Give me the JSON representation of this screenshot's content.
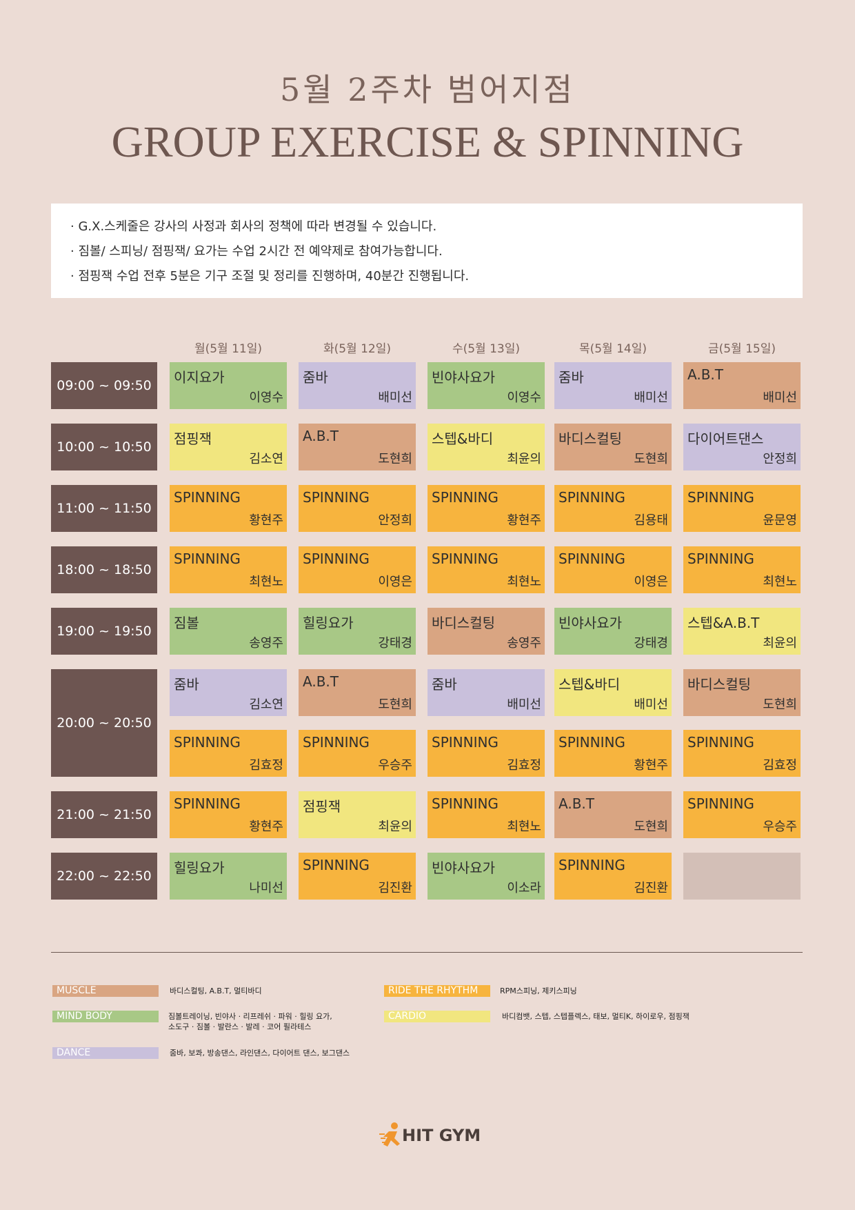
{
  "header": {
    "subtitle": "5월 2주차 범어지점",
    "title": "GROUP EXERCISE & SPINNING"
  },
  "notices": [
    "· G.X.스케줄은 강사의 사정과 회사의 정책에 따라 변경될 수 있습니다.",
    "· 짐볼/ 스피닝/ 점핑잭/ 요가는 수업 2시간 전 예약제로 참여가능합니다.",
    "· 점핑잭 수업 전후 5분은 기구 조절 및 정리를 진행하며, 40분간 진행됩니다."
  ],
  "days": [
    "월(5월 11일)",
    "화(5월 12일)",
    "수(5월 13일)",
    "목(5월 14일)",
    "금(5월 15일)"
  ],
  "colors": {
    "muscle": "#d9a582",
    "mindbody": "#a8c886",
    "dance": "#c9c0dc",
    "ride": "#f7b43e",
    "cardio": "#f1e67f",
    "empty": "#d3bfb7",
    "time": "#6d5551"
  },
  "schedule": [
    {
      "time": "09:00 ~ 09:50",
      "slots": [
        [
          {
            "name": "이지요가",
            "instructor": "이영수",
            "cat": "mindbody"
          },
          {
            "name": "줌바",
            "instructor": "배미선",
            "cat": "dance"
          },
          {
            "name": "빈야사요가",
            "instructor": "이영수",
            "cat": "mindbody"
          },
          {
            "name": "줌바",
            "instructor": "배미선",
            "cat": "dance"
          },
          {
            "name": "A.B.T",
            "instructor": "배미선",
            "cat": "muscle"
          }
        ]
      ]
    },
    {
      "time": "10:00 ~ 10:50",
      "slots": [
        [
          {
            "name": "점핑잭",
            "instructor": "김소연",
            "cat": "cardio"
          },
          {
            "name": "A.B.T",
            "instructor": "도현희",
            "cat": "muscle"
          },
          {
            "name": "스텝&바디",
            "instructor": "최윤의",
            "cat": "cardio"
          },
          {
            "name": "바디스컬팅",
            "instructor": "도현희",
            "cat": "muscle"
          },
          {
            "name": "다이어트댄스",
            "instructor": "안정희",
            "cat": "dance"
          }
        ]
      ]
    },
    {
      "time": "11:00 ~ 11:50",
      "slots": [
        [
          {
            "name": "SPINNING",
            "instructor": "황현주",
            "cat": "ride"
          },
          {
            "name": "SPINNING",
            "instructor": "안정희",
            "cat": "ride"
          },
          {
            "name": "SPINNING",
            "instructor": "황현주",
            "cat": "ride"
          },
          {
            "name": "SPINNING",
            "instructor": "김용태",
            "cat": "ride"
          },
          {
            "name": "SPINNING",
            "instructor": "윤문영",
            "cat": "ride"
          }
        ]
      ]
    },
    {
      "time": "18:00 ~ 18:50",
      "slots": [
        [
          {
            "name": "SPINNING",
            "instructor": "최현노",
            "cat": "ride"
          },
          {
            "name": "SPINNING",
            "instructor": "이영은",
            "cat": "ride"
          },
          {
            "name": "SPINNING",
            "instructor": "최현노",
            "cat": "ride"
          },
          {
            "name": "SPINNING",
            "instructor": "이영은",
            "cat": "ride"
          },
          {
            "name": "SPINNING",
            "instructor": "최현노",
            "cat": "ride"
          }
        ]
      ]
    },
    {
      "time": "19:00 ~ 19:50",
      "slots": [
        [
          {
            "name": "짐볼",
            "instructor": "송영주",
            "cat": "mindbody"
          },
          {
            "name": "힐링요가",
            "instructor": "강태경",
            "cat": "mindbody"
          },
          {
            "name": "바디스컬팅",
            "instructor": "송영주",
            "cat": "muscle"
          },
          {
            "name": "빈야사요가",
            "instructor": "강태경",
            "cat": "mindbody"
          },
          {
            "name": "스텝&A.B.T",
            "instructor": "최윤의",
            "cat": "cardio"
          }
        ]
      ]
    },
    {
      "time": "20:00 ~ 20:50",
      "slots": [
        [
          {
            "name": "줌바",
            "instructor": "김소연",
            "cat": "dance"
          },
          {
            "name": "A.B.T",
            "instructor": "도현희",
            "cat": "muscle"
          },
          {
            "name": "줌바",
            "instructor": "배미선",
            "cat": "dance"
          },
          {
            "name": "스텝&바디",
            "instructor": "배미선",
            "cat": "cardio"
          },
          {
            "name": "바디스컬팅",
            "instructor": "도현희",
            "cat": "muscle"
          }
        ],
        [
          {
            "name": "SPINNING",
            "instructor": "김효정",
            "cat": "ride"
          },
          {
            "name": "SPINNING",
            "instructor": "우승주",
            "cat": "ride"
          },
          {
            "name": "SPINNING",
            "instructor": "김효정",
            "cat": "ride"
          },
          {
            "name": "SPINNING",
            "instructor": "황현주",
            "cat": "ride"
          },
          {
            "name": "SPINNING",
            "instructor": "김효정",
            "cat": "ride"
          }
        ]
      ]
    },
    {
      "time": "21:00 ~ 21:50",
      "slots": [
        [
          {
            "name": "SPINNING",
            "instructor": "황현주",
            "cat": "ride"
          },
          {
            "name": "점핑잭",
            "instructor": "최윤의",
            "cat": "cardio"
          },
          {
            "name": "SPINNING",
            "instructor": "최현노",
            "cat": "ride"
          },
          {
            "name": "A.B.T",
            "instructor": "도현희",
            "cat": "muscle"
          },
          {
            "name": "SPINNING",
            "instructor": "우승주",
            "cat": "ride"
          }
        ]
      ]
    },
    {
      "time": "22:00 ~ 22:50",
      "slots": [
        [
          {
            "name": "힐링요가",
            "instructor": "나미선",
            "cat": "mindbody"
          },
          {
            "name": "SPINNING",
            "instructor": "김진환",
            "cat": "ride"
          },
          {
            "name": "빈야사요가",
            "instructor": "이소라",
            "cat": "mindbody"
          },
          {
            "name": "SPINNING",
            "instructor": "김진환",
            "cat": "ride"
          },
          {
            "name": "",
            "instructor": "",
            "cat": "empty"
          }
        ]
      ]
    }
  ],
  "legend": [
    {
      "key": "muscle",
      "label": "MUSCLE",
      "desc": "바디스컬팅, A.B.T, 멀티바디"
    },
    {
      "key": "ride",
      "label": "RIDE THE RHYTHM",
      "desc": "RPM스피닝, 제키스피닝"
    },
    {
      "key": "mindbody",
      "label": "MIND BODY",
      "desc": "짐볼트레이닝, 빈야사 · 리프레쉬 · 파워 · 힐링 요가,\n소도구 · 짐볼 · 발란스 · 발레 · 코어 필라테스"
    },
    {
      "key": "cardio",
      "label": "CARDIO",
      "desc": "바디컴뱃, 스텝, 스텝플렉스, 태보, 멀티K, 하이로우, 점핑잭"
    },
    {
      "key": "dance",
      "label": "DANCE",
      "desc": "줌바, 보콰, 방송댄스, 라인댄스, 다이어트 댄스, 보그댄스"
    }
  ],
  "logo": {
    "text": "HIT GYM"
  }
}
